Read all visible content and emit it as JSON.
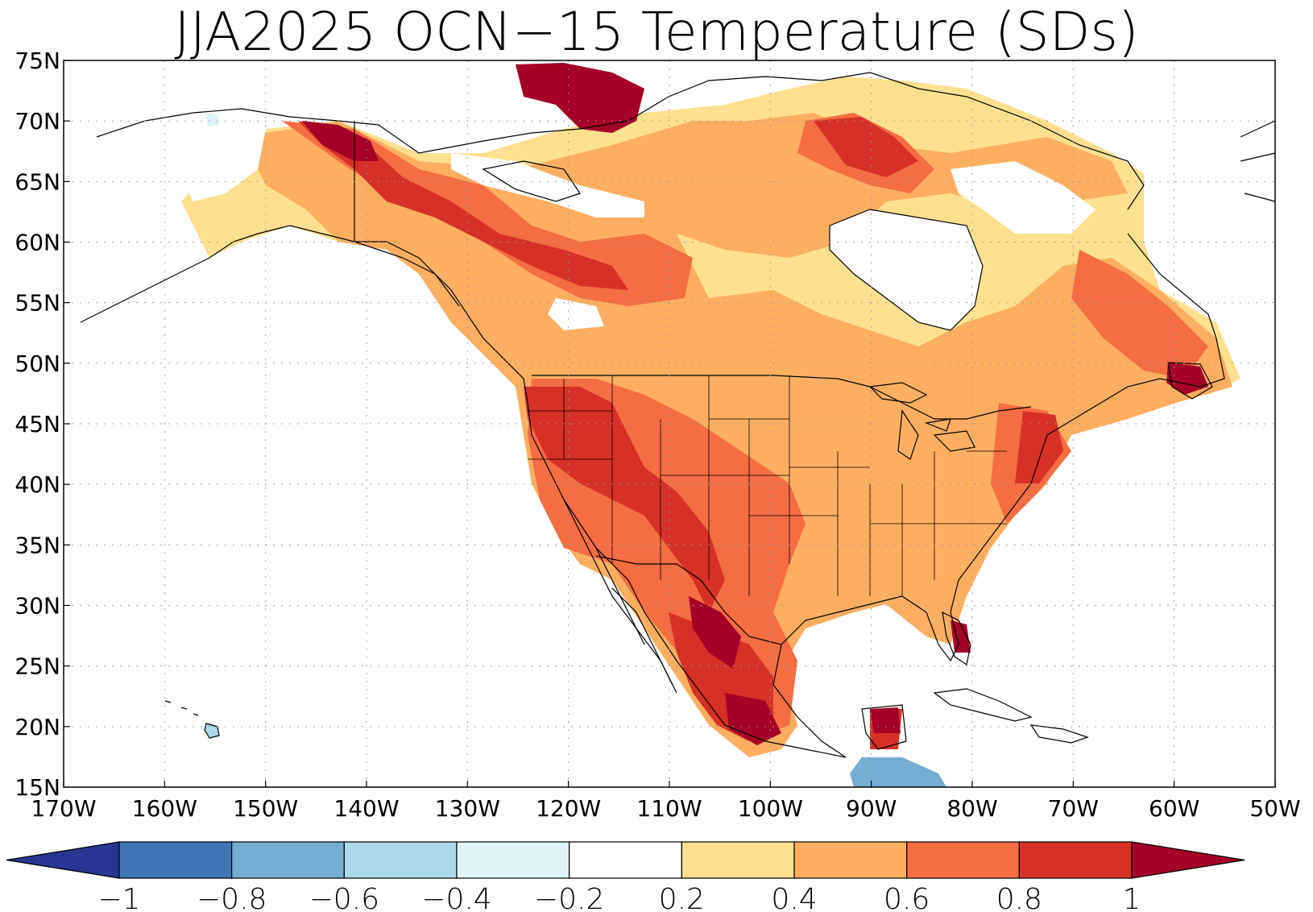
{
  "title": "JJA2025 OCN−15 Temperature (SDs)",
  "map": {
    "lon_range": [
      -170,
      -50
    ],
    "lat_range": [
      15,
      75
    ],
    "lat_tick_labels": [
      "15N",
      "20N",
      "25N",
      "30N",
      "35N",
      "40N",
      "45N",
      "50N",
      "55N",
      "60N",
      "65N",
      "70N",
      "75N"
    ],
    "lon_tick_labels": [
      "170W",
      "160W",
      "150W",
      "140W",
      "130W",
      "120W",
      "110W",
      "100W",
      "90W",
      "80W",
      "70W",
      "60W",
      "50W"
    ],
    "gridlines": "dotted"
  },
  "legend": {
    "labels": [
      "−1",
      "−0.8",
      "−0.6",
      "−0.4",
      "−0.2",
      "0.2",
      "0.4",
      "0.6",
      "0.8",
      "1"
    ],
    "colors": [
      "#283593",
      "#3f74b6",
      "#74add1",
      "#abd9e9",
      "#e0f3f8",
      "#ffffff",
      "#fee090",
      "#fdae61",
      "#f46d43",
      "#d73027",
      "#a50026"
    ]
  },
  "colors": {
    "land_outline": "#000000",
    "ocean": "#ffffff",
    "max_warm": "#a50026"
  }
}
